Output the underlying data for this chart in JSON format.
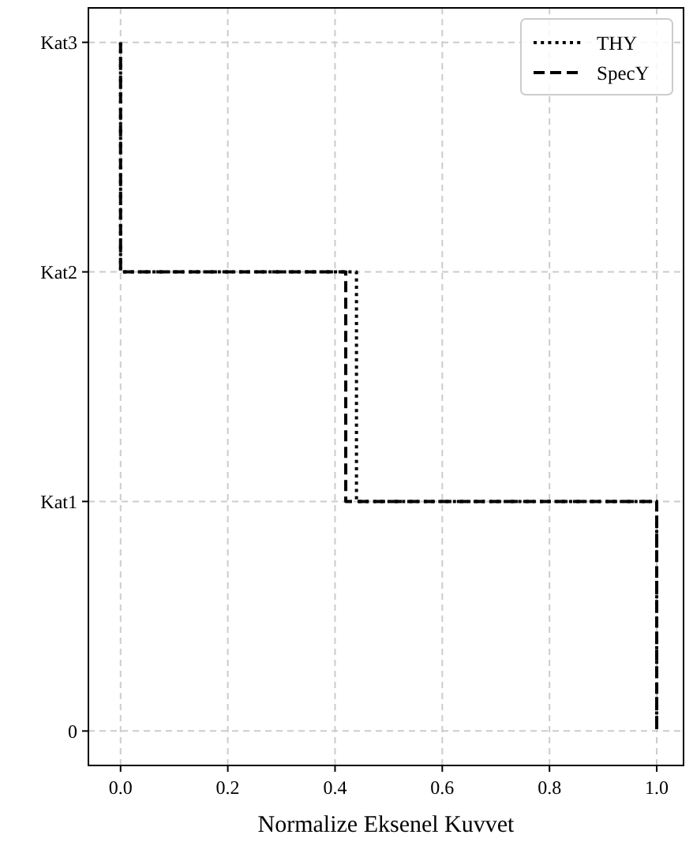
{
  "chart_data": {
    "type": "step",
    "orientation": "horizontal",
    "xlabel": "Normalize Eksenel Kuvvet",
    "categories": [
      "Kat3",
      "Kat2",
      "Kat1",
      "0"
    ],
    "xlim": [
      -0.06,
      1.05
    ],
    "xticks": [
      {
        "value": 0,
        "label": "0.0"
      },
      {
        "value": 0.2,
        "label": "0.2"
      },
      {
        "value": 0.4,
        "label": "0.4"
      },
      {
        "value": 0.6,
        "label": "0.6"
      },
      {
        "value": 0.8,
        "label": "0.8"
      },
      {
        "value": 1,
        "label": "1.0"
      }
    ],
    "grid": true,
    "legend": "top right",
    "series": [
      {
        "name": "THY",
        "color": "#000000",
        "line_style": "dotted",
        "values": [
          0,
          0.44,
          1,
          1
        ]
      },
      {
        "name": "SpecY",
        "color": "#000000",
        "line_style": "dashed",
        "values": [
          0,
          0.42,
          1,
          1
        ]
      }
    ]
  }
}
